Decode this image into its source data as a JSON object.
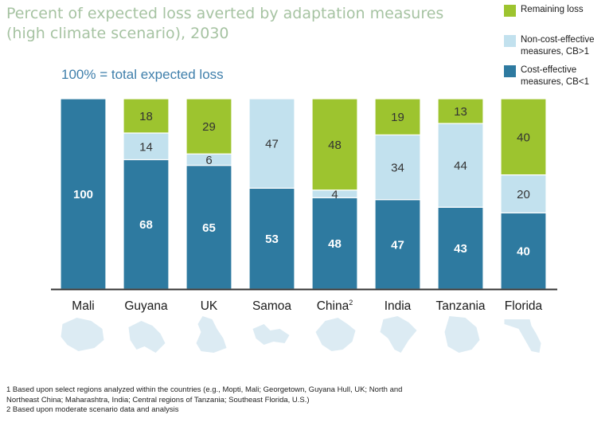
{
  "title": "Percent of expected loss averted by adaptation measures (high climate scenario), 2030",
  "subtitle": "100% = total expected loss",
  "legend": {
    "items": [
      {
        "label": "Remaining loss",
        "color": "#9dc42f"
      },
      {
        "label": "Non-cost-effective\nmeasures, CB>1",
        "color": "#c2e1ee"
      },
      {
        "label": "Cost-effective\nmeasures, CB<1",
        "color": "#2e7aa0"
      }
    ]
  },
  "chart_data": {
    "type": "bar",
    "stacked": true,
    "categories": [
      "Mali",
      "Guyana",
      "UK",
      "Samoa",
      "China",
      "India",
      "Tanzania",
      "Florida"
    ],
    "category_superscripts": [
      "",
      "",
      "",
      "",
      "2",
      "",
      "",
      ""
    ],
    "series": [
      {
        "name": "Cost-effective measures, CB<1",
        "color": "#2e7aa0",
        "values": [
          100,
          68,
          65,
          53,
          48,
          47,
          43,
          40
        ]
      },
      {
        "name": "Non-cost-effective measures, CB>1",
        "color": "#c2e1ee",
        "values": [
          0,
          14,
          6,
          47,
          4,
          34,
          44,
          20
        ]
      },
      {
        "name": "Remaining loss",
        "color": "#9dc42f",
        "values": [
          0,
          18,
          29,
          0,
          48,
          19,
          13,
          40
        ]
      }
    ],
    "ylim": [
      0,
      100
    ],
    "xlabel": "",
    "ylabel": "",
    "grid": false,
    "legend_position": "top-right",
    "map_icons": [
      "mali-map-icon",
      "guyana-map-icon",
      "uk-map-icon",
      "samoa-map-icon",
      "china-map-icon",
      "india-map-icon",
      "tanzania-map-icon",
      "florida-map-icon"
    ]
  },
  "footnotes": [
    "1 Based upon select regions analyzed within the countries (e.g., Mopti, Mali; Georgetown, Guyana Hull, UK; North and\n   Northeast China; Maharashtra, India; Central regions of Tanzania; Southeast Florida, U.S.)",
    "2 Based upon moderate scenario data and analysis"
  ]
}
